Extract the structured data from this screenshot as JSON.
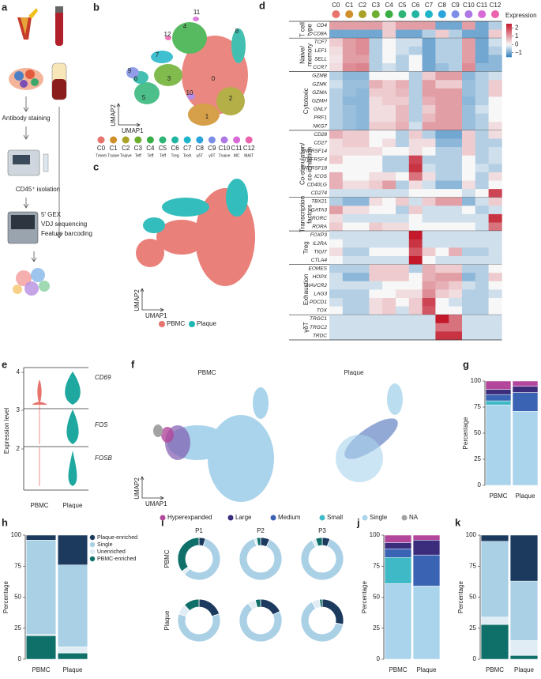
{
  "panels": {
    "a": {
      "label": "a",
      "steps": [
        "Antibody staining",
        "CD45⁺ isolation",
        "5′ GEX",
        "VDJ sequencing",
        "Feature barcoding"
      ]
    },
    "b": {
      "label": "b",
      "x_label": "UMAP1",
      "y_label": "UMAP2",
      "clusters": [
        {
          "name": "C0",
          "type": "Tmem",
          "plot_label": "0",
          "color": "#e8736c"
        },
        {
          "name": "C1",
          "type": "Tnaive",
          "plot_label": "1",
          "color": "#cf8f2a"
        },
        {
          "name": "C2",
          "type": "Tnaive",
          "plot_label": "2",
          "color": "#a9a229"
        },
        {
          "name": "C3",
          "type": "Teff",
          "plot_label": "3",
          "color": "#6cae2e"
        },
        {
          "name": "C4",
          "type": "Teff",
          "plot_label": "4",
          "color": "#3aae45"
        },
        {
          "name": "C5",
          "type": "Teff",
          "plot_label": "5",
          "color": "#2db476"
        },
        {
          "name": "C6",
          "type": "Treg",
          "plot_label": "6",
          "color": "#22b5a3"
        },
        {
          "name": "C7",
          "type": "Texh",
          "plot_label": "7",
          "color": "#1fb5c9"
        },
        {
          "name": "C8",
          "type": "γδT",
          "plot_label": "8",
          "color": "#2ba3dc"
        },
        {
          "name": "C9",
          "type": "γδT",
          "plot_label": "9",
          "color": "#7d8ee6"
        },
        {
          "name": "C10",
          "type": "Tnaive",
          "plot_label": "10",
          "color": "#ad78e3"
        },
        {
          "name": "C11",
          "type": "MC",
          "plot_label": "11",
          "color": "#d86ad6"
        },
        {
          "name": "C12",
          "type": "MAIT",
          "plot_label": "12",
          "color": "#ec63ad"
        }
      ]
    },
    "c": {
      "label": "c",
      "x_label": "UMAP1",
      "y_label": "UMAP2",
      "legend": [
        {
          "name": "PBMC",
          "color": "#e8736c"
        },
        {
          "name": "Plaque",
          "color": "#1fb6b6"
        }
      ]
    },
    "d": {
      "label": "d",
      "legend_title": "Expression",
      "clim": [
        -1.5,
        2.5
      ],
      "colors": {
        "low": "#2f7fbf",
        "mid": "#f7f7f7",
        "high": "#c3192b"
      },
      "colorbar_ticks": [
        2,
        1,
        0,
        {
          "value": -1,
          "label": "−1"
        }
      ],
      "groups": [
        {
          "name": [
            "T cell",
            "type"
          ],
          "genes": [
            "CD4",
            "CD8A"
          ]
        },
        {
          "name": [
            "Naive/",
            "memory"
          ],
          "genes": [
            "TCF7",
            "LEF1",
            "SELL",
            "CCR7"
          ]
        },
        {
          "name": [
            "Cytotoxic"
          ],
          "genes": [
            "GZMB",
            "GZMK",
            "GZMA",
            "GZMH",
            "GNLY",
            "PRF1",
            "NKG7"
          ]
        },
        {
          "name": [
            "Co-stimulation/",
            "co-inhibition"
          ],
          "genes": [
            "CD28",
            "CD27",
            "TNFRSF14",
            "TNFRSF4",
            "TNFRSF18",
            "ICOS",
            "CD40LG",
            "CD274"
          ]
        },
        {
          "name": [
            "Transcription",
            "factors"
          ],
          "genes": [
            "TBX21",
            "GATA3",
            "RORC",
            "RORA"
          ]
        },
        {
          "name": [
            "Treg"
          ],
          "genes": [
            "FOXP3",
            "IL2RA",
            "TIGIT",
            "CTLA4"
          ]
        },
        {
          "name": [
            "Exhaustion"
          ],
          "genes": [
            "EOMES",
            "HOPX",
            "HAVCR2",
            "LAG3",
            "PDCD1",
            "TOX"
          ]
        },
        {
          "name": [
            "γδT"
          ],
          "genes": [
            "TRGC1",
            "TRGC2",
            "TRDC"
          ]
        }
      ],
      "values": [
        [
          1,
          1,
          1,
          1,
          0.5,
          1,
          1,
          1,
          -1,
          -1,
          1,
          -1,
          -0.5
        ],
        [
          -1,
          -1,
          -1,
          -1,
          0.5,
          -1,
          -1,
          -0.5,
          0.5,
          -0.5,
          -1,
          -1,
          0.5
        ],
        [
          0.5,
          1,
          1.2,
          -0.5,
          0,
          -0.3,
          -0.3,
          -1,
          -0.5,
          -0.5,
          1,
          -1,
          -0.3
        ],
        [
          0.3,
          1,
          1.2,
          -0.5,
          0,
          -0.3,
          -0.5,
          -1,
          -0.5,
          -0.5,
          1,
          -1,
          -0.5
        ],
        [
          0.2,
          1,
          1,
          -0.5,
          0,
          -0.5,
          0,
          -1,
          -0.5,
          -0.5,
          1,
          -1,
          -0.8
        ],
        [
          0.3,
          1.2,
          1.3,
          -0.5,
          -0.3,
          -0.5,
          0,
          -1,
          -0.7,
          -0.5,
          1.2,
          -0.8,
          -0.8
        ],
        [
          -0.5,
          -0.8,
          -0.8,
          0,
          0,
          0,
          -0.5,
          0.5,
          1,
          1,
          -0.8,
          -0.5,
          -0.3
        ],
        [
          -0.3,
          -0.7,
          -0.7,
          0.8,
          0.5,
          0.8,
          -0.5,
          1,
          0.5,
          0.5,
          -0.7,
          -0.5,
          0.5
        ],
        [
          -0.5,
          -0.7,
          -0.8,
          0.5,
          0.5,
          0.7,
          -0.5,
          1,
          1,
          1,
          -0.7,
          -0.5,
          0.5
        ],
        [
          -0.5,
          -0.8,
          -0.8,
          0.3,
          0.5,
          0.5,
          -0.5,
          0.8,
          1,
          1,
          -0.8,
          -0.5,
          0
        ],
        [
          -0.5,
          -0.7,
          -0.8,
          0.3,
          0.3,
          0.7,
          -0.5,
          0.5,
          1,
          1,
          -0.7,
          -0.3,
          0
        ],
        [
          -0.5,
          -0.7,
          -0.8,
          0.3,
          0.3,
          0.7,
          -0.5,
          0.7,
          1,
          1,
          -0.7,
          -0.5,
          0
        ],
        [
          -0.5,
          -0.7,
          -0.8,
          0.5,
          0.5,
          0.8,
          -0.3,
          1,
          1,
          1,
          -0.7,
          -0.5,
          0.3
        ],
        [
          0.8,
          0.5,
          0.5,
          0,
          0,
          -0.5,
          0.5,
          -0.5,
          -1,
          -1,
          0.5,
          -0.5,
          0.3
        ],
        [
          0.3,
          0.5,
          0.5,
          0,
          0.3,
          -0.5,
          0.3,
          0.3,
          -0.8,
          -0.8,
          0.5,
          -0.5,
          -0.5
        ],
        [
          0.3,
          0.3,
          0.3,
          0.3,
          0,
          0,
          0.3,
          0,
          -0.5,
          -0.5,
          0.5,
          -0.5,
          -0.3
        ],
        [
          0.5,
          0,
          0,
          0,
          -0.5,
          -0.5,
          2,
          -0.5,
          -0.5,
          -0.5,
          0,
          -0.5,
          -0.3
        ],
        [
          0,
          0,
          0,
          0,
          -0.5,
          -0.5,
          2.2,
          -0.3,
          -0.5,
          -0.5,
          0,
          -0.3,
          -0.5
        ],
        [
          0.8,
          0,
          0,
          0.3,
          0.3,
          0,
          1.5,
          0.3,
          -0.5,
          -0.5,
          0,
          -0.5,
          0.3
        ],
        [
          0.8,
          0.3,
          0.3,
          0.5,
          1,
          -0.5,
          0.3,
          -0.3,
          -0.8,
          -0.8,
          0.3,
          -0.5,
          0
        ],
        [
          -0.3,
          -0.3,
          -0.3,
          -0.3,
          -0.3,
          -0.3,
          0,
          0,
          0,
          0,
          -0.3,
          0,
          2
        ],
        [
          -0.5,
          -0.8,
          -0.8,
          0.3,
          0,
          0.5,
          -0.3,
          0.5,
          1,
          1,
          -0.8,
          -0.3,
          0.5
        ],
        [
          1,
          0.3,
          0.3,
          0,
          0,
          -0.5,
          0.5,
          -0.3,
          -0.3,
          -0.3,
          0,
          -0.5,
          -0.3
        ],
        [
          0.3,
          -0.3,
          -0.3,
          -0.3,
          -0.3,
          -0.3,
          0,
          -0.3,
          -0.3,
          -0.3,
          -0.3,
          -0.3,
          2.2
        ],
        [
          0.5,
          0,
          0,
          0.5,
          0.3,
          0.3,
          0,
          0,
          0,
          0,
          0,
          -0.3,
          1.5
        ],
        [
          -0.3,
          -0.3,
          -0.3,
          -0.3,
          -0.3,
          -0.3,
          2.5,
          -0.3,
          -0.3,
          -0.3,
          -0.3,
          -0.3,
          -0.3
        ],
        [
          0,
          -0.3,
          -0.3,
          -0.3,
          -0.3,
          -0.3,
          2.2,
          -0.3,
          -0.3,
          -0.3,
          -0.3,
          -0.3,
          -0.3
        ],
        [
          0.3,
          -0.5,
          -0.5,
          0,
          0,
          0,
          1.8,
          0.5,
          0,
          0.8,
          -0.5,
          -0.5,
          -0.3
        ],
        [
          0,
          -0.3,
          -0.3,
          -0.3,
          -0.3,
          -0.3,
          2.5,
          0,
          -0.3,
          -0.3,
          -0.3,
          -0.3,
          -0.3
        ],
        [
          -0.5,
          -0.5,
          -0.5,
          0.5,
          0.5,
          0.5,
          -0.5,
          0.8,
          0.5,
          0.5,
          -0.5,
          -0.5,
          0
        ],
        [
          -0.3,
          -0.8,
          -0.8,
          0.5,
          0.5,
          0.5,
          0,
          0.8,
          1,
          1,
          -0.8,
          -0.5,
          0.5
        ],
        [
          -0.3,
          -0.3,
          -0.3,
          -0.3,
          0,
          0,
          0,
          1,
          0.8,
          0.5,
          -0.3,
          -0.5,
          0
        ],
        [
          -0.5,
          -0.5,
          -0.5,
          0,
          0,
          0.3,
          0.3,
          1.2,
          0.5,
          0.3,
          -0.5,
          -0.5,
          -0.3
        ],
        [
          -0.3,
          -0.5,
          -0.5,
          0.3,
          0.5,
          0,
          0.5,
          2,
          0,
          -0.3,
          -0.5,
          -0.5,
          0
        ],
        [
          0,
          -0.5,
          -0.5,
          0.3,
          0.5,
          -0.3,
          0.5,
          1.8,
          0,
          0,
          -0.5,
          -0.5,
          0
        ],
        [
          -0.3,
          -0.3,
          -0.3,
          -0.3,
          -0.3,
          -0.3,
          -0.3,
          -0.3,
          2.5,
          1.5,
          -0.3,
          -0.3,
          -0.3
        ],
        [
          -0.3,
          -0.3,
          -0.3,
          -0.3,
          -0.3,
          -0.3,
          -0.3,
          -0.3,
          1.5,
          1.5,
          -0.3,
          -0.3,
          -0.3
        ],
        [
          -0.3,
          -0.3,
          -0.3,
          -0.3,
          -0.3,
          -0.3,
          -0.3,
          -0.3,
          2.2,
          2.2,
          -0.3,
          -0.3,
          -0.3
        ]
      ]
    },
    "e": {
      "label": "e",
      "y_label": "Expression level",
      "genes": [
        "CD69",
        "FOS",
        "FOSB"
      ],
      "categories": [
        "PBMC",
        "Plaque"
      ],
      "yticks": [
        4,
        3,
        2
      ]
    },
    "f": {
      "label": "f",
      "titles": [
        "PBMC",
        "Plaque"
      ],
      "x_label": "UMAP1",
      "y_label": "UMAP2",
      "legend": [
        {
          "name": "Hyperexpanded",
          "color": "#b2479c"
        },
        {
          "name": "Large",
          "color": "#3b2c7c"
        },
        {
          "name": "Medium",
          "color": "#3a63b3"
        },
        {
          "name": "Small",
          "color": "#40b9c6"
        },
        {
          "name": "Single",
          "color": "#aad4ec"
        },
        {
          "name": "NA",
          "color": "#a3a3a3"
        }
      ]
    },
    "g": {
      "label": "g",
      "y_label": "Percentage",
      "categories": [
        "PBMC",
        "Plaque"
      ],
      "ylim": [
        0,
        100
      ],
      "yticks": [
        0,
        25,
        50,
        75,
        100
      ],
      "segments": [
        [
          8,
          5
        ],
        [
          5,
          6
        ],
        [
          6,
          18
        ],
        [
          4,
          0
        ],
        [
          77,
          71
        ]
      ]
    },
    "h": {
      "label": "h",
      "y_label": "Percentage",
      "categories": [
        "PBMC",
        "Plaque"
      ],
      "ylim": [
        0,
        100
      ],
      "yticks": [
        0,
        25,
        50,
        75,
        100
      ],
      "legend": [
        {
          "name": "Plaque-enriched",
          "color": "#1b3a5e"
        },
        {
          "name": "Single",
          "color": "#aad0e6"
        },
        {
          "name": "Unenriched",
          "color": "#e1edf5"
        },
        {
          "name": "PBMC-enriched",
          "color": "#0f6f69"
        }
      ],
      "segments": [
        [
          4,
          24
        ],
        [
          76,
          66
        ],
        [
          1,
          5
        ],
        [
          19,
          5
        ]
      ]
    },
    "i": {
      "label": "i",
      "samples": [
        "PBMC",
        "Plaque"
      ],
      "donors": [
        "P1",
        "P2",
        "P3"
      ],
      "values": [
        [
          [
            5,
            57,
            3,
            35
          ],
          [
            7,
            88,
            2,
            3
          ],
          [
            6,
            86,
            3,
            5
          ]
        ],
        [
          [
            20,
            60,
            8,
            12
          ],
          [
            18,
            72,
            6,
            4
          ],
          [
            28,
            64,
            6,
            2
          ]
        ]
      ]
    },
    "j": {
      "label": "j",
      "y_label": "Percentage",
      "categories": [
        "PBMC",
        "Plaque"
      ],
      "ylim": [
        0,
        100
      ],
      "yticks": [
        0,
        25,
        50,
        75,
        100
      ],
      "segments": [
        [
          6,
          4
        ],
        [
          5,
          12
        ],
        [
          7,
          25
        ],
        [
          21,
          0
        ],
        [
          61,
          59
        ]
      ]
    },
    "k": {
      "label": "k",
      "y_label": "Percentage",
      "categories": [
        "PBMC",
        "Plaque"
      ],
      "ylim": [
        0,
        100
      ],
      "yticks": [
        0,
        25,
        50,
        75,
        100
      ],
      "segments": [
        [
          5,
          37
        ],
        [
          61,
          48
        ],
        [
          6,
          12
        ],
        [
          28,
          3
        ]
      ]
    }
  }
}
